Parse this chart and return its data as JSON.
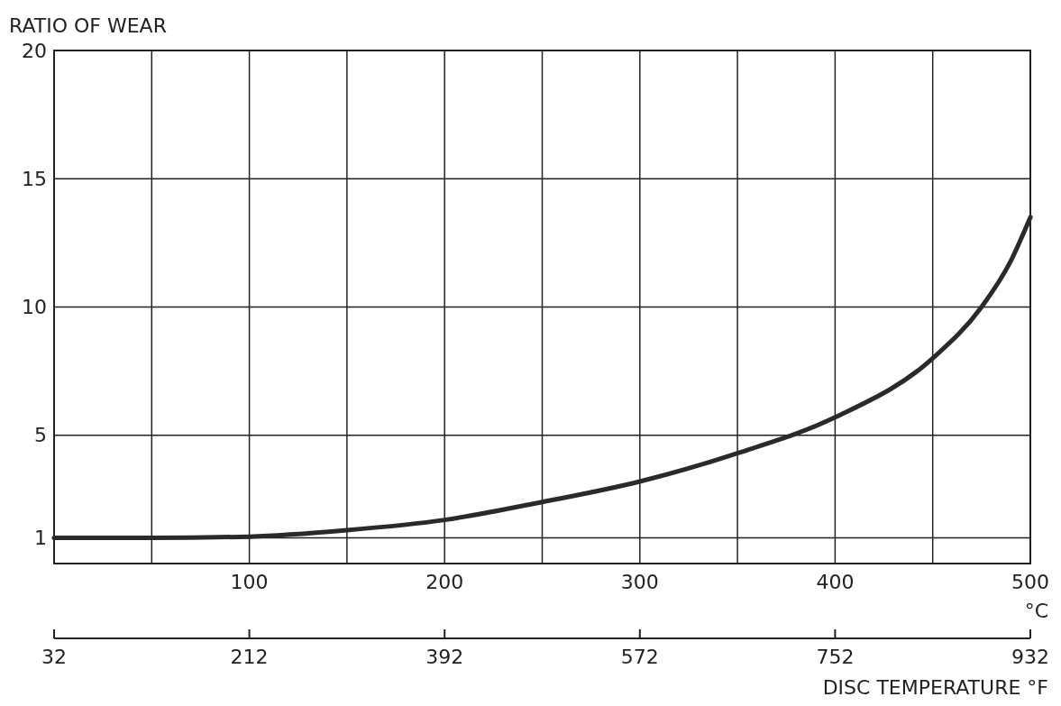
{
  "chart_data": {
    "type": "line",
    "ylabel": "RATIO OF WEAR",
    "xlabel": "°C",
    "x2label": "DISC TEMPERATURE °F",
    "x": [
      0,
      50,
      100,
      150,
      200,
      250,
      300,
      350,
      400,
      450,
      475,
      490,
      500
    ],
    "series": [
      {
        "color": "#2a2a2a",
        "values": [
          1.0,
          1.0,
          1.05,
          1.3,
          1.7,
          2.4,
          3.2,
          4.3,
          5.7,
          8.0,
          10.0,
          11.8,
          13.5
        ]
      }
    ],
    "xlim": [
      0,
      500
    ],
    "xticks": [
      {
        "value": 50,
        "label": null
      },
      100,
      {
        "value": 150,
        "label": null
      },
      200,
      {
        "value": 250,
        "label": null
      },
      300,
      {
        "value": 350,
        "label": null
      },
      400,
      {
        "value": 450,
        "label": null
      },
      500
    ],
    "x2lim": [
      32,
      932
    ],
    "x2ticks": [
      32,
      212,
      392,
      572,
      752,
      932
    ],
    "ylim": [
      0,
      20
    ],
    "yticks": [
      1,
      5,
      10,
      15,
      20
    ],
    "grid": true,
    "marker": "none",
    "line_style": "solid"
  }
}
